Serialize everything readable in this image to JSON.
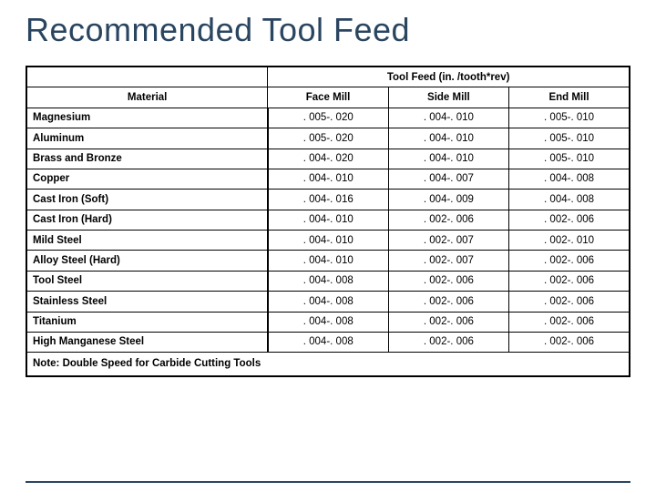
{
  "page": {
    "title": "Recommended Tool Feed",
    "title_color": "#2a4560",
    "title_fontsize": 36,
    "accent_line_color": "#2a4560"
  },
  "table": {
    "spanner_label": "Tool Feed (in. /tooth*rev)",
    "columns": {
      "material": "Material",
      "face_mill": "Face Mill",
      "side_mill": "Side Mill",
      "end_mill": "End  Mill"
    },
    "column_widths_pct": [
      40,
      20,
      20,
      20
    ],
    "border_color": "#000000",
    "header_fontweight": "700",
    "cell_fontsize": 11.5,
    "rows": [
      {
        "material": "Magnesium",
        "face": ". 005-. 020",
        "side": ". 004-. 010",
        "end": ". 005-. 010"
      },
      {
        "material": "Aluminum",
        "face": ". 005-. 020",
        "side": ". 004-. 010",
        "end": ". 005-. 010"
      },
      {
        "material": "Brass and Bronze",
        "face": ". 004-. 020",
        "side": ". 004-. 010",
        "end": ". 005-. 010"
      },
      {
        "material": "Copper",
        "face": ". 004-. 010",
        "side": ". 004-. 007",
        "end": ". 004-. 008"
      },
      {
        "material": "Cast  Iron (Soft)",
        "face": ". 004-. 016",
        "side": ". 004-. 009",
        "end": ". 004-. 008"
      },
      {
        "material": "Cast Iron (Hard)",
        "face": ". 004-. 010",
        "side": ". 002-. 006",
        "end": ". 002-. 006"
      },
      {
        "material": "Mild Steel",
        "face": ". 004-. 010",
        "side": ". 002-. 007",
        "end": ". 002-. 010"
      },
      {
        "material": "Alloy Steel (Hard)",
        "face": ". 004-. 010",
        "side": ". 002-. 007",
        "end": ". 002-. 006"
      },
      {
        "material": "Tool Steel",
        "face": ". 004-. 008",
        "side": ". 002-. 006",
        "end": ". 002-. 006"
      },
      {
        "material": "Stainless Steel",
        "face": ". 004-. 008",
        "side": ". 002-. 006",
        "end": ". 002-. 006"
      },
      {
        "material": "Titanium",
        "face": ". 004-. 008",
        "side": ". 002-. 006",
        "end": ". 002-. 006"
      },
      {
        "material": "High Manganese Steel",
        "face": ". 004-. 008",
        "side": ". 002-. 006",
        "end": ". 002-. 006"
      }
    ],
    "note": "Note: Double Speed for Carbide Cutting Tools"
  }
}
